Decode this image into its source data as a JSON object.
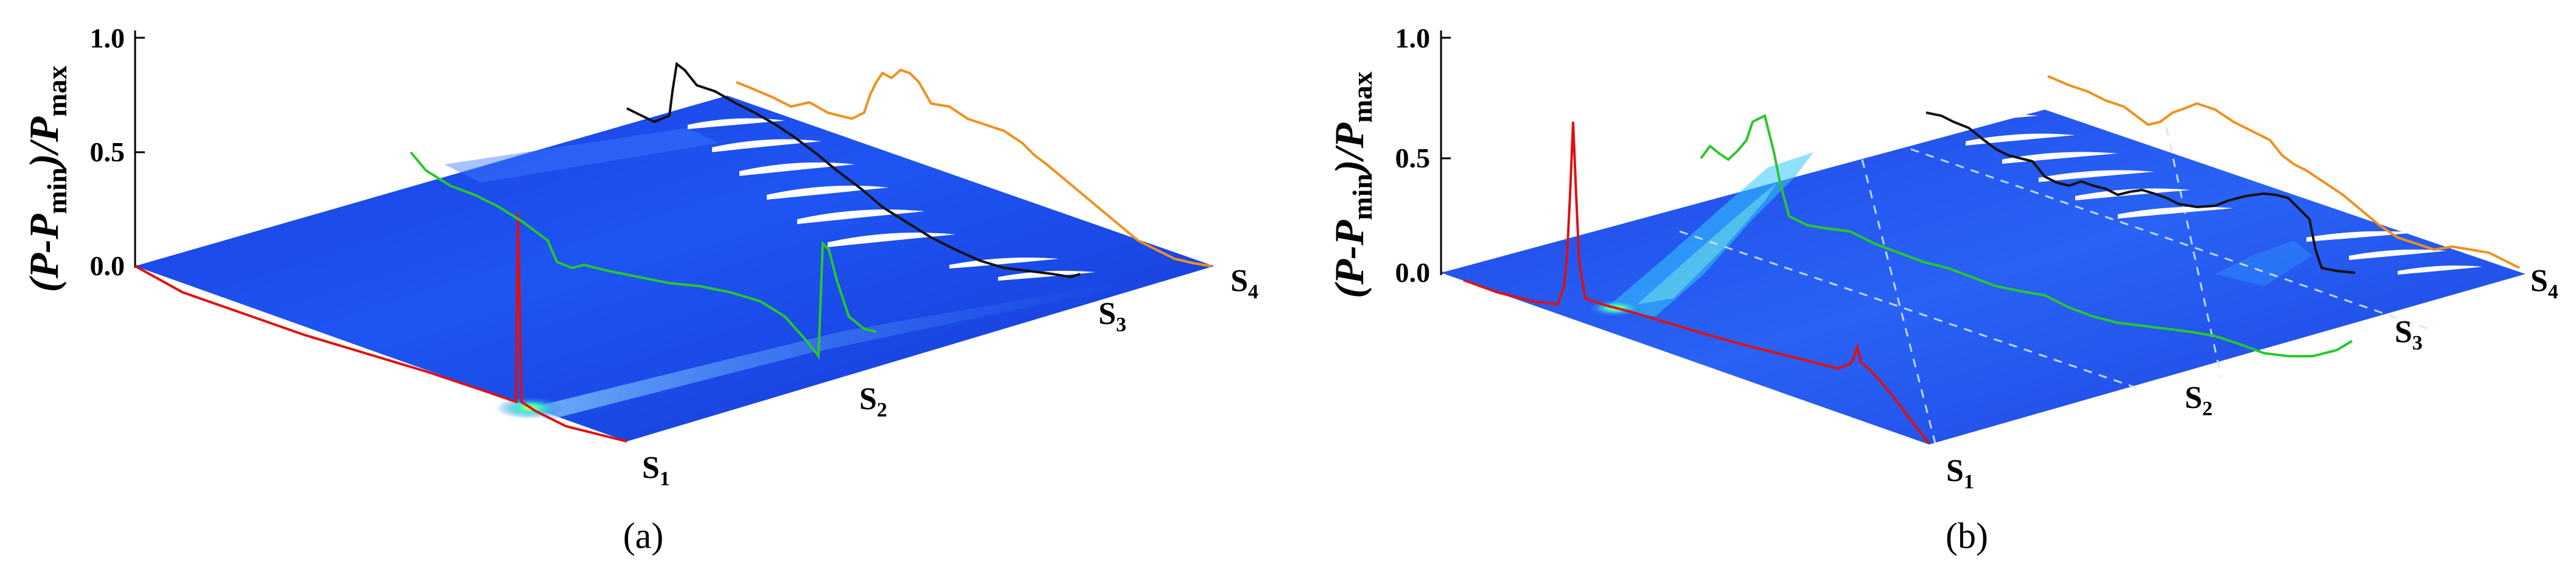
{
  "panels": [
    {
      "id": "a",
      "caption": "(a)",
      "yaxis": {
        "label_main": "(P-P",
        "label_sub1": "min",
        "label_mid": ")/P",
        "label_sub2": "max",
        "ticks": [
          "1.0",
          "0.5",
          "0.0"
        ]
      },
      "sections": [
        {
          "main": "S",
          "sub": "1"
        },
        {
          "main": "S",
          "sub": "2"
        },
        {
          "main": "S",
          "sub": "3"
        },
        {
          "main": "S",
          "sub": "4"
        }
      ]
    },
    {
      "id": "b",
      "caption": "(b)",
      "yaxis": {
        "label_main": "(P-P",
        "label_sub1": "min",
        "label_mid": ")/P",
        "label_sub2": "max",
        "ticks": [
          "1.0",
          "0.5",
          "0.0"
        ]
      },
      "sections": [
        {
          "main": "S",
          "sub": "1"
        },
        {
          "main": "S",
          "sub": "2"
        },
        {
          "main": "S",
          "sub": "3"
        },
        {
          "main": "S",
          "sub": "4"
        }
      ]
    }
  ],
  "colors": {
    "surface_dark": "#1238d8",
    "surface_mid": "#2a6cff",
    "surface_light": "#7fd3ff",
    "hotspot": "#d8ff40",
    "curve_red": "#e01010",
    "curve_green": "#28c828",
    "curve_black": "#111111",
    "curve_orange": "#f0901c",
    "blade": "#ffffff"
  }
}
